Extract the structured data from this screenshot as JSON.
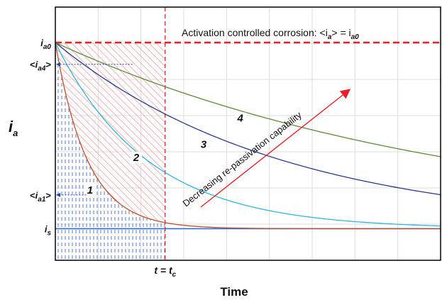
{
  "chart_data": {
    "type": "line",
    "title": "",
    "xlabel": "Time",
    "ylabel_main": "i",
    "ylabel_sub": "a",
    "xlim": [
      0,
      1
    ],
    "ylim": [
      0,
      1
    ],
    "grid": true,
    "y_tick_labels": [
      {
        "main": "i",
        "sub": "a0",
        "y": 1.0,
        "brackets": false
      },
      {
        "main": "i",
        "sub": "a4",
        "y": 0.9,
        "brackets": true
      },
      {
        "main": "i",
        "sub": "a1",
        "y": 0.3,
        "brackets": true
      },
      {
        "main": "i",
        "sub": "s",
        "y": 0.145,
        "brackets": false
      }
    ],
    "i_s": 0.145,
    "i_a0": 1.0,
    "t_c": 0.285,
    "t_c_label": {
      "main": "t = t",
      "sub": "c"
    },
    "activation_text": "Activation controlled corrosion: <i",
    "activation_text_sub": "a",
    "activation_text_mid": "> = i",
    "activation_text_sub2": "a0",
    "arrow_text": "Decreasing re-passivation capability",
    "series": [
      {
        "name": "1",
        "color": "#c0502a",
        "k": 12.0,
        "label_at": {
          "x": 0.09,
          "y": 0.31
        }
      },
      {
        "name": "2",
        "color": "#2fb6dc",
        "k": 4.2,
        "label_at": {
          "x": 0.21,
          "y": 0.46
        }
      },
      {
        "name": "3",
        "color": "#2b3a8c",
        "k": 1.7,
        "label_at": {
          "x": 0.385,
          "y": 0.52
        }
      },
      {
        "name": "4",
        "color": "#5e8a3c",
        "k": 0.95,
        "label_at": {
          "x": 0.48,
          "y": 0.64
        }
      }
    ],
    "colors": {
      "activation_line": "#e8202a",
      "tc_line": "#e8202a",
      "hatch_red": "#f2a0a0",
      "hatch_blue": "#5a78c8",
      "is_line": "#2a6fd6",
      "arrow": "#e8202a",
      "dotted": "#1f45c0"
    }
  }
}
